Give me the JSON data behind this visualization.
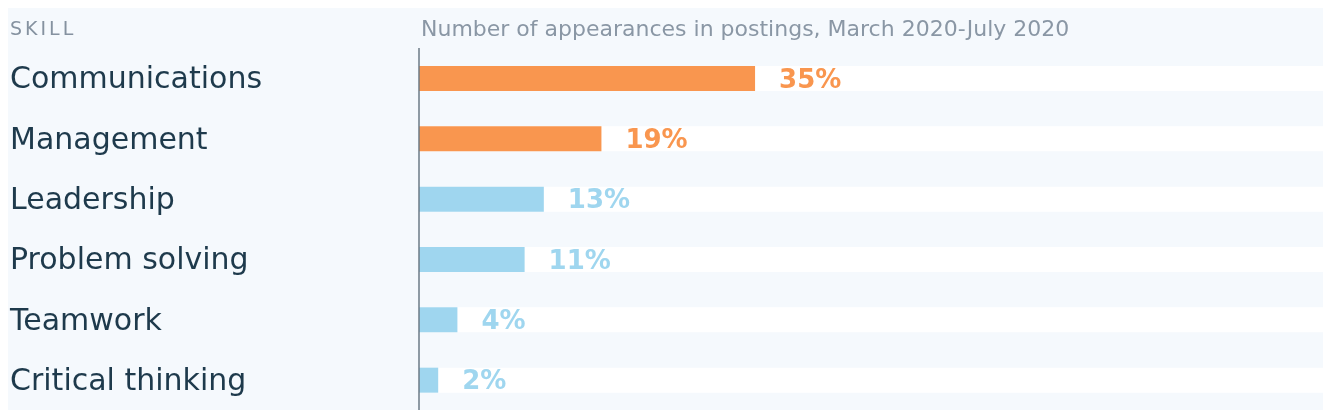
{
  "chart_data": {
    "type": "bar",
    "orientation": "horizontal",
    "title": "Number of appearances in postings, March 2020-July 2020",
    "ylabel": "SKILL",
    "categories": [
      "Communications",
      "Management",
      "Leadership",
      "Problem solving",
      "Teamwork",
      "Critical thinking"
    ],
    "values": [
      35,
      19,
      13,
      11,
      4,
      2
    ],
    "colors": [
      "#f9964f",
      "#f9964f",
      "#9fd6ef",
      "#9fd6ef",
      "#9fd6ef",
      "#9fd6ef"
    ],
    "value_labels": [
      "35%",
      "19%",
      "13%",
      "11%",
      "4%",
      "2%"
    ]
  }
}
